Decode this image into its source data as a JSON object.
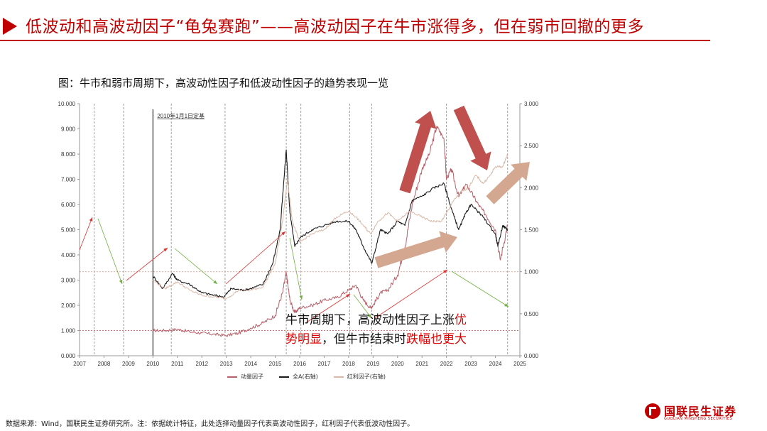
{
  "header": {
    "title": "低波动和高波动因子“龟兔赛跑”——高波动因子在牛市涨得多，但在弱市回撤的更多"
  },
  "figure": {
    "caption": "图：牛市和弱市周期下，高波动性因子和低波动性因子的趋势表现一览",
    "baseline_note": "2010年1月1日定基",
    "annotation": {
      "line1_prefix": "牛市周期下，高波动性因子上涨",
      "line1_highlight": "优",
      "line2_highlight_a": "势明显",
      "line2_mid": "，但牛市结束时",
      "line2_highlight_b": "跌幅也更大"
    }
  },
  "chart_data": {
    "type": "line",
    "title": "",
    "xlabel": "",
    "ylabel": "",
    "xlim": [
      2007,
      2025
    ],
    "ylim": [
      0,
      10
    ],
    "y2lim": [
      0,
      3
    ],
    "x_ticks": [
      "2007",
      "2008",
      "2009",
      "2010",
      "2011",
      "2012",
      "2013",
      "2014",
      "2015",
      "2016",
      "2017",
      "2018",
      "2019",
      "2020",
      "2021",
      "2022",
      "2023",
      "2024",
      "2025"
    ],
    "y_ticks": [
      "0.000",
      "1.000",
      "2.000",
      "3.000",
      "4.000",
      "5.000",
      "6.000",
      "7.000",
      "8.000",
      "9.000",
      "10.000"
    ],
    "y2_ticks": [
      "0.000",
      "0.500",
      "1.000",
      "1.500",
      "2.000",
      "2.500",
      "3.000"
    ],
    "series": [
      {
        "name": "动量因子",
        "axis": "left",
        "color": "#b8606a",
        "x": [
          2010.0,
          2010.5,
          2011.0,
          2011.5,
          2012.0,
          2012.5,
          2013.0,
          2013.5,
          2014.0,
          2014.5,
          2015.0,
          2015.3,
          2015.45,
          2015.6,
          2015.8,
          2016.0,
          2016.5,
          2017.0,
          2017.5,
          2018.0,
          2018.3,
          2018.6,
          2018.9,
          2019.0,
          2019.3,
          2019.6,
          2020.0,
          2020.3,
          2020.6,
          2021.0,
          2021.3,
          2021.6,
          2021.9,
          2022.0,
          2022.2,
          2022.5,
          2022.8,
          2023.0,
          2023.3,
          2023.6,
          2024.0,
          2024.2,
          2024.5
        ],
        "y": [
          1.0,
          1.0,
          1.05,
          0.95,
          0.9,
          0.85,
          0.8,
          0.9,
          1.1,
          1.3,
          1.6,
          2.5,
          3.3,
          2.2,
          1.7,
          1.9,
          2.0,
          2.2,
          2.3,
          2.6,
          2.8,
          2.2,
          1.9,
          2.0,
          2.5,
          2.6,
          3.2,
          4.3,
          6.0,
          7.4,
          8.0,
          9.1,
          8.6,
          7.0,
          7.4,
          6.3,
          6.8,
          6.5,
          6.0,
          5.6,
          5.0,
          3.8,
          5.2
        ]
      },
      {
        "name": "全A(右轴)",
        "axis": "right",
        "color": "#1a1a1a",
        "x": [
          2010.0,
          2010.4,
          2010.8,
          2011.0,
          2011.5,
          2012.0,
          2012.5,
          2012.9,
          2013.2,
          2013.7,
          2014.0,
          2014.5,
          2014.9,
          2015.2,
          2015.45,
          2015.6,
          2015.8,
          2016.0,
          2016.5,
          2017.0,
          2017.5,
          2018.0,
          2018.3,
          2018.6,
          2018.95,
          2019.3,
          2019.6,
          2020.0,
          2020.3,
          2020.6,
          2021.0,
          2021.5,
          2021.9,
          2022.2,
          2022.5,
          2022.8,
          2023.0,
          2023.5,
          2024.0,
          2024.1,
          2024.3,
          2024.5
        ],
        "y": [
          0.95,
          0.8,
          0.98,
          0.9,
          0.85,
          0.75,
          0.72,
          0.7,
          0.8,
          0.78,
          0.8,
          0.85,
          1.1,
          1.5,
          2.45,
          1.7,
          1.3,
          1.4,
          1.5,
          1.55,
          1.6,
          1.6,
          1.5,
          1.3,
          1.1,
          1.5,
          1.45,
          1.6,
          1.55,
          1.85,
          1.9,
          2.0,
          2.05,
          1.75,
          1.5,
          1.7,
          1.8,
          1.65,
          1.45,
          1.3,
          1.55,
          1.5
        ]
      },
      {
        "name": "红利因子(右轴)",
        "axis": "right",
        "color": "#d9b8a8",
        "x": [
          2010.0,
          2010.5,
          2011.0,
          2011.5,
          2012.0,
          2012.5,
          2013.0,
          2013.5,
          2014.0,
          2014.5,
          2015.0,
          2015.3,
          2015.5,
          2015.7,
          2016.0,
          2016.5,
          2017.0,
          2017.5,
          2018.0,
          2018.3,
          2018.6,
          2018.9,
          2019.2,
          2019.6,
          2020.0,
          2020.5,
          2021.0,
          2021.4,
          2021.8,
          2022.0,
          2022.3,
          2022.6,
          2022.9,
          2023.2,
          2023.5,
          2023.8,
          2024.0,
          2024.3,
          2024.5
        ],
        "y": [
          0.9,
          0.8,
          0.88,
          0.78,
          0.72,
          0.7,
          0.68,
          0.78,
          0.78,
          0.82,
          1.1,
          1.6,
          2.1,
          1.6,
          1.35,
          1.45,
          1.5,
          1.65,
          1.72,
          1.65,
          1.55,
          1.45,
          1.6,
          1.7,
          1.6,
          1.72,
          1.65,
          1.6,
          1.6,
          1.7,
          1.85,
          1.95,
          2.0,
          2.15,
          2.05,
          2.15,
          2.25,
          2.25,
          2.4
        ]
      }
    ],
    "reference_lines": {
      "left_y": 1.0,
      "right_y": 1.0
    },
    "cycle_markers_x": [
      2007.6,
      2008.8,
      2010.75,
      2012.95,
      2015.45,
      2016.05,
      2018.05,
      2018.95,
      2022.0,
      2024.5
    ],
    "legend_placement": "bottom"
  },
  "legend": {
    "items": [
      "动量因子",
      "全A(右轴)",
      "红利因子(右轴)"
    ]
  },
  "footer": {
    "source": "数据来源：Wind，国联民生证券研究所。注：依据统计特征，此处选择动量因子代表高波动性因子，红利因子代表低波动性因子。"
  },
  "logo": {
    "name": "国联民生证券",
    "sub": "GUOLIAN MINSHENG SECURITIES"
  },
  "colors": {
    "accent": "#c00000",
    "momentum": "#b8606a",
    "market": "#1a1a1a",
    "dividend": "#d9b8a8"
  }
}
